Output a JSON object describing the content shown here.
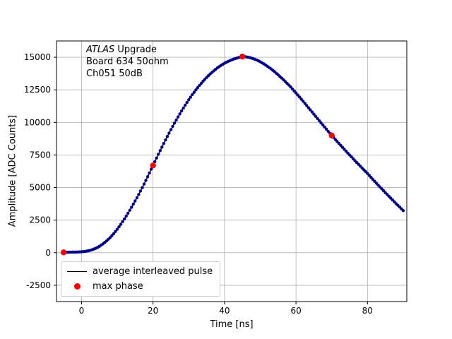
{
  "figure": {
    "background": "#ffffff",
    "annotation": {
      "line1_italic": "ATLAS",
      "line1_rest": " Upgrade",
      "line2": "Board 634 50ohm",
      "line3": "Ch051 50dB"
    },
    "legend": [
      {
        "type": "line",
        "color": "#000000",
        "label": "average interleaved pulse"
      },
      {
        "type": "marker",
        "color": "#ff0000",
        "label": "max phase"
      }
    ]
  },
  "chart_data": {
    "type": "line",
    "title": "",
    "xlabel": "Time [ns]",
    "ylabel": "Amplitude [ADC Counts]",
    "xlim": [
      -7,
      91
    ],
    "ylim": [
      -3750,
      16250
    ],
    "xticks": [
      0,
      20,
      40,
      60,
      80
    ],
    "yticks": [
      -2500,
      0,
      2500,
      5000,
      7500,
      10000,
      12500,
      15000
    ],
    "grid": true,
    "grid_color": "#b0b0b0",
    "series": [
      {
        "name": "average interleaved pulse",
        "style": "line-with-markers",
        "line_color": "#000000",
        "marker_color": "#00008b",
        "sample_step_ns": 0.5,
        "keypoints": [
          [
            -5,
            30
          ],
          [
            -4,
            35
          ],
          [
            -3,
            40
          ],
          [
            -2,
            45
          ],
          [
            -1,
            55
          ],
          [
            0,
            70
          ],
          [
            1,
            100
          ],
          [
            2,
            150
          ],
          [
            3,
            230
          ],
          [
            4,
            340
          ],
          [
            5,
            490
          ],
          [
            6,
            680
          ],
          [
            7,
            900
          ],
          [
            8,
            1160
          ],
          [
            9,
            1460
          ],
          [
            10,
            1800
          ],
          [
            11,
            2180
          ],
          [
            12,
            2590
          ],
          [
            13,
            3030
          ],
          [
            14,
            3490
          ],
          [
            15,
            3970
          ],
          [
            16,
            4470
          ],
          [
            17,
            4990
          ],
          [
            18,
            5550
          ],
          [
            19,
            6120
          ],
          [
            20,
            6700
          ],
          [
            21,
            7270
          ],
          [
            22,
            7830
          ],
          [
            23,
            8380
          ],
          [
            24,
            8920
          ],
          [
            25,
            9440
          ],
          [
            26,
            9940
          ],
          [
            27,
            10420
          ],
          [
            28,
            10880
          ],
          [
            29,
            11320
          ],
          [
            30,
            11740
          ],
          [
            31,
            12130
          ],
          [
            32,
            12500
          ],
          [
            33,
            12840
          ],
          [
            34,
            13160
          ],
          [
            35,
            13450
          ],
          [
            36,
            13720
          ],
          [
            37,
            13960
          ],
          [
            38,
            14180
          ],
          [
            39,
            14370
          ],
          [
            40,
            14540
          ],
          [
            41,
            14680
          ],
          [
            42,
            14800
          ],
          [
            43,
            14900
          ],
          [
            44,
            14980
          ],
          [
            45,
            15050
          ],
          [
            46,
            15030
          ],
          [
            47,
            14980
          ],
          [
            48,
            14900
          ],
          [
            49,
            14790
          ],
          [
            50,
            14650
          ],
          [
            51,
            14490
          ],
          [
            52,
            14310
          ],
          [
            53,
            14110
          ],
          [
            54,
            13890
          ],
          [
            55,
            13650
          ],
          [
            56,
            13400
          ],
          [
            57,
            13140
          ],
          [
            58,
            12870
          ],
          [
            59,
            12570
          ],
          [
            60,
            12260
          ],
          [
            61,
            11940
          ],
          [
            62,
            11620
          ],
          [
            63,
            11290
          ],
          [
            64,
            10960
          ],
          [
            65,
            10630
          ],
          [
            66,
            10300
          ],
          [
            67,
            9970
          ],
          [
            68,
            9650
          ],
          [
            69,
            9320
          ],
          [
            70,
            9000
          ],
          [
            71,
            8690
          ],
          [
            72,
            8390
          ],
          [
            73,
            8090
          ],
          [
            74,
            7790
          ],
          [
            75,
            7500
          ],
          [
            76,
            7210
          ],
          [
            77,
            6920
          ],
          [
            78,
            6640
          ],
          [
            79,
            6360
          ],
          [
            80,
            6080
          ],
          [
            81,
            5780
          ],
          [
            82,
            5480
          ],
          [
            83,
            5190
          ],
          [
            84,
            4900
          ],
          [
            85,
            4610
          ],
          [
            86,
            4330
          ],
          [
            87,
            4050
          ],
          [
            88,
            3770
          ],
          [
            89,
            3500
          ],
          [
            90,
            3230
          ]
        ]
      },
      {
        "name": "max phase",
        "style": "scatter",
        "color": "#ff0000",
        "points": [
          [
            -5,
            30
          ],
          [
            20,
            6700
          ],
          [
            45,
            15050
          ],
          [
            70,
            9000
          ]
        ]
      }
    ]
  }
}
